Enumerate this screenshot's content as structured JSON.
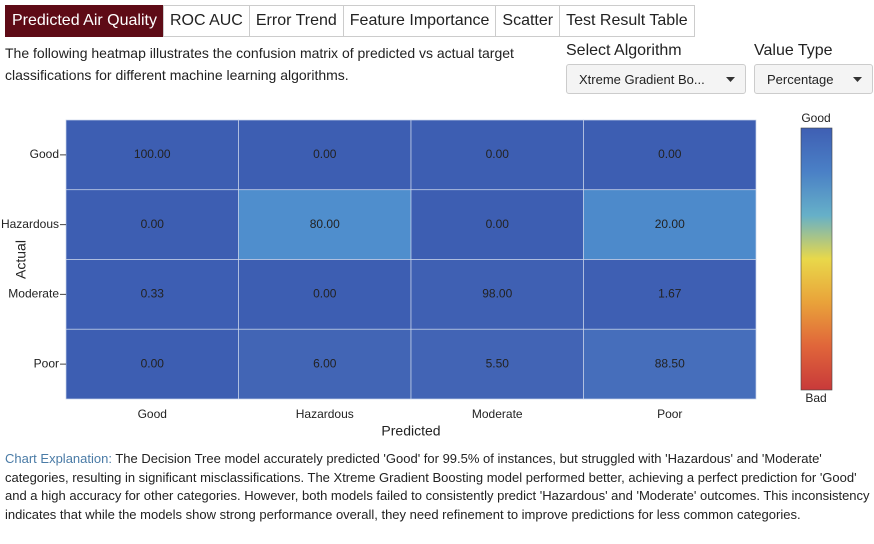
{
  "tabs": [
    "Predicted Air Quality",
    "ROC AUC",
    "Error Trend",
    "Feature Importance",
    "Scatter",
    "Test Result Table"
  ],
  "description": "The following heatmap illustrates the confusion matrix of predicted vs actual target classifications for different machine learning algorithms.",
  "controls": [
    {
      "label": "Select Algorithm",
      "value": "Xtreme Gradient Bo..."
    },
    {
      "label": "Value Type",
      "value": "Percentage"
    }
  ],
  "chart_data": {
    "type": "heatmap",
    "x_label": "Predicted",
    "y_label": "Actual",
    "x_categories": [
      "Good",
      "Hazardous",
      "Moderate",
      "Poor"
    ],
    "y_categories": [
      "Good",
      "Hazardous",
      "Moderate",
      "Poor"
    ],
    "values": [
      [
        100,
        0,
        0,
        0
      ],
      [
        0,
        80,
        0,
        20
      ],
      [
        0.33,
        0,
        98,
        1.67
      ],
      [
        0,
        6,
        5.5,
        88.5
      ]
    ],
    "value_labels": [
      [
        "100.00",
        "0.00",
        "0.00",
        "0.00"
      ],
      [
        "0.00",
        "80.00",
        "0.00",
        "20.00"
      ],
      [
        "0.33",
        "0.00",
        "98.00",
        "1.67"
      ],
      [
        "0.00",
        "6.00",
        "5.50",
        "88.50"
      ]
    ],
    "colors": [
      [
        "#3d5eb2",
        "#3d5eb2",
        "#3d5eb2",
        "#3d5eb2"
      ],
      [
        "#3d5eb2",
        "#4f8ecd",
        "#3d5eb2",
        "#4d8acb"
      ],
      [
        "#3d5eb3",
        "#3d5eb2",
        "#3f60b3",
        "#3e5fb3"
      ],
      [
        "#3d5eb2",
        "#4265b5",
        "#4264b5",
        "#466ebb"
      ]
    ],
    "colorbar": {
      "top_label": "Good",
      "bottom_label": "Bad",
      "colors": [
        "#3f5fb3",
        "#4a80c6",
        "#66b0c8",
        "#e9d84a",
        "#e9a23a",
        "#e0653a",
        "#c83a3a"
      ]
    }
  },
  "explanation": {
    "label": "Chart Explanation:",
    "text": "The Decision Tree model accurately predicted 'Good' for 99.5% of instances, but struggled with 'Hazardous' and 'Moderate' categories, resulting in significant misclassifications. The Xtreme Gradient Boosting model performed better, achieving a perfect prediction for 'Good' and a high accuracy for other categories. However, both models failed to consistently predict 'Hazardous' and 'Moderate' outcomes. This inconsistency indicates that while the models show strong performance overall, they need refinement to improve predictions for less common categories."
  }
}
